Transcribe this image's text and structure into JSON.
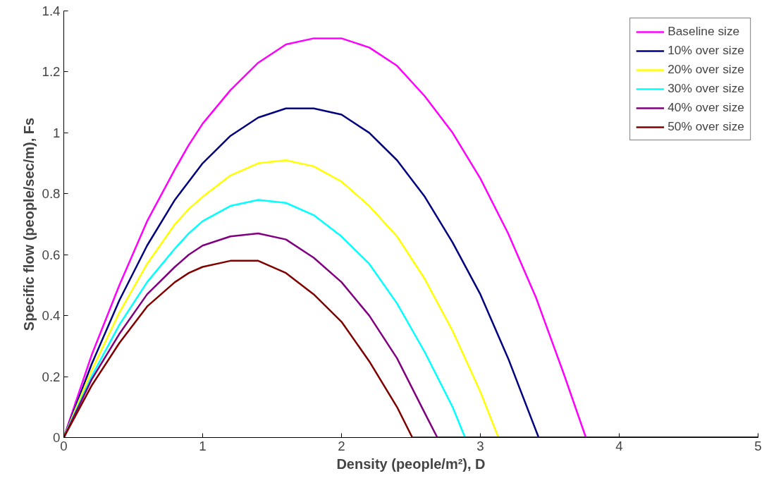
{
  "chart_data": {
    "type": "line",
    "xlabel": "Density (people/m²), D",
    "ylabel": "Specific flow (people/sec/m), Fs",
    "xlim": [
      0,
      5
    ],
    "xticks": [
      0,
      1,
      2,
      3,
      4,
      5
    ],
    "ylim": [
      0,
      1.4
    ],
    "yticks": [
      0,
      0.2,
      0.4,
      0.6,
      0.8,
      1,
      1.2,
      1.4
    ],
    "grid": false,
    "legend": "top right",
    "marker": "none",
    "line_style": "solid",
    "series": [
      {
        "name": "Baseline size",
        "color": "#ff00ff",
        "x": [
          0,
          0.2,
          0.4,
          0.6,
          0.8,
          0.9,
          1.0,
          1.2,
          1.4,
          1.6,
          1.8,
          2.0,
          2.2,
          2.4,
          2.6,
          2.8,
          3.0,
          3.2,
          3.4,
          3.6,
          3.76,
          5
        ],
        "values": [
          0,
          0.27,
          0.5,
          0.71,
          0.88,
          0.96,
          1.03,
          1.14,
          1.23,
          1.29,
          1.31,
          1.31,
          1.28,
          1.22,
          1.12,
          1.0,
          0.85,
          0.67,
          0.46,
          0.21,
          0,
          0
        ]
      },
      {
        "name": "10% over size",
        "color": "#000080",
        "x": [
          0,
          0.2,
          0.4,
          0.6,
          0.8,
          0.9,
          1.0,
          1.2,
          1.4,
          1.6,
          1.8,
          2.0,
          2.2,
          2.4,
          2.6,
          2.8,
          3.0,
          3.2,
          3.42,
          5
        ],
        "values": [
          0,
          0.24,
          0.45,
          0.63,
          0.78,
          0.84,
          0.9,
          0.99,
          1.05,
          1.08,
          1.08,
          1.06,
          1.0,
          0.91,
          0.79,
          0.64,
          0.47,
          0.26,
          0,
          0
        ]
      },
      {
        "name": "20% over size",
        "color": "#ffff00",
        "x": [
          0,
          0.2,
          0.4,
          0.6,
          0.8,
          0.9,
          1.0,
          1.2,
          1.4,
          1.6,
          1.8,
          2.0,
          2.2,
          2.4,
          2.6,
          2.8,
          3.0,
          3.13,
          5
        ],
        "values": [
          0,
          0.22,
          0.41,
          0.57,
          0.7,
          0.75,
          0.79,
          0.86,
          0.9,
          0.91,
          0.89,
          0.84,
          0.76,
          0.66,
          0.52,
          0.35,
          0.15,
          0,
          0
        ]
      },
      {
        "name": "30% over size",
        "color": "#00ffff",
        "x": [
          0,
          0.2,
          0.4,
          0.6,
          0.8,
          0.9,
          1.0,
          1.2,
          1.4,
          1.6,
          1.8,
          2.0,
          2.2,
          2.4,
          2.6,
          2.8,
          2.89,
          5
        ],
        "values": [
          0,
          0.2,
          0.37,
          0.51,
          0.62,
          0.67,
          0.71,
          0.76,
          0.78,
          0.77,
          0.73,
          0.66,
          0.57,
          0.44,
          0.28,
          0.1,
          0,
          0
        ]
      },
      {
        "name": "40% over size",
        "color": "#800080",
        "x": [
          0,
          0.2,
          0.4,
          0.6,
          0.8,
          0.9,
          1.0,
          1.2,
          1.4,
          1.6,
          1.8,
          2.0,
          2.2,
          2.4,
          2.6,
          2.69,
          5
        ],
        "values": [
          0,
          0.19,
          0.34,
          0.47,
          0.56,
          0.6,
          0.63,
          0.66,
          0.67,
          0.65,
          0.59,
          0.51,
          0.4,
          0.26,
          0.08,
          0,
          0
        ]
      },
      {
        "name": "50% over size",
        "color": "#800000",
        "x": [
          0,
          0.2,
          0.4,
          0.6,
          0.8,
          0.9,
          1.0,
          1.2,
          1.4,
          1.6,
          1.8,
          2.0,
          2.2,
          2.4,
          2.51,
          5
        ],
        "values": [
          0,
          0.17,
          0.31,
          0.43,
          0.51,
          0.54,
          0.56,
          0.58,
          0.58,
          0.54,
          0.47,
          0.38,
          0.25,
          0.1,
          0,
          0
        ]
      }
    ]
  }
}
